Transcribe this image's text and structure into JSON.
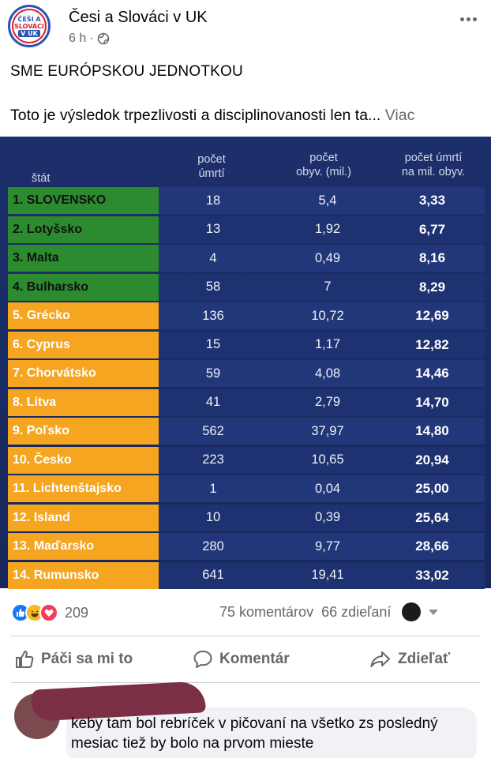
{
  "header": {
    "logo": {
      "line1": "ČEŠI A",
      "line2": "SLOVÁCI",
      "line3": "V UK"
    },
    "group_name": "Česi a Slováci v UK",
    "time": "6 h",
    "separator": "·",
    "icons": {
      "privacy": "globe-icon",
      "menu": "more-icon"
    }
  },
  "post": {
    "title": "SME EURÓPSKOU JEDNOTKOU",
    "text": "Toto je výsledok trpezlivosti a disciplinovanosti  len ta...",
    "more_label": "Viac"
  },
  "table": {
    "headers": {
      "state": "štát",
      "deaths_1": "počet",
      "deaths_2": "úmrtí",
      "pop_1": "počet",
      "pop_2": "obyv. (mil.)",
      "rate_1": "počet úmrtí",
      "rate_2": "na mil. obyv."
    },
    "rows": [
      {
        "state": "1.  SLOVENSKO",
        "deaths": "18",
        "pop": "5,4",
        "rate": "3,33",
        "color": "#2c8b2f"
      },
      {
        "state": "2.  Lotyšsko",
        "deaths": "13",
        "pop": "1,92",
        "rate": "6,77",
        "color": "#2c8b2f"
      },
      {
        "state": "3.  Malta",
        "deaths": "4",
        "pop": "0,49",
        "rate": "8,16",
        "color": "#2c8b2f"
      },
      {
        "state": "4.  Bulharsko",
        "deaths": "58",
        "pop": "7",
        "rate": "8,29",
        "color": "#2c8b2f"
      },
      {
        "state": "5.  Grécko",
        "deaths": "136",
        "pop": "10,72",
        "rate": "12,69",
        "color": "#f5a520"
      },
      {
        "state": "6.  Cyprus",
        "deaths": "15",
        "pop": "1,17",
        "rate": "12,82",
        "color": "#f5a520"
      },
      {
        "state": "7.  Chorvátsko",
        "deaths": "59",
        "pop": "4,08",
        "rate": "14,46",
        "color": "#f5a520"
      },
      {
        "state": "8.  Litva",
        "deaths": "41",
        "pop": "2,79",
        "rate": "14,70",
        "color": "#f5a520"
      },
      {
        "state": "9.  Poľsko",
        "deaths": "562",
        "pop": "37,97",
        "rate": "14,80",
        "color": "#f5a520"
      },
      {
        "state": "10. Česko",
        "deaths": "223",
        "pop": "10,65",
        "rate": "20,94",
        "color": "#f5a520"
      },
      {
        "state": "11. Lichtenštajsko",
        "deaths": "1",
        "pop": "0,04",
        "rate": "25,00",
        "color": "#f5a520"
      },
      {
        "state": "12. Island",
        "deaths": "10",
        "pop": "0,39",
        "rate": "25,64",
        "color": "#f5a520"
      },
      {
        "state": "13. Maďarsko",
        "deaths": "280",
        "pop": "9,77",
        "rate": "28,66",
        "color": "#f5a520"
      },
      {
        "state": "14. Rumunsko",
        "deaths": "641",
        "pop": "19,41",
        "rate": "33,02",
        "color": "#f5a520"
      }
    ]
  },
  "engagement": {
    "reaction_icons": [
      "like-reaction-icon",
      "haha-reaction-icon",
      "love-reaction-icon"
    ],
    "reaction_count": "209",
    "comments": "75 komentárov",
    "shares": "66 zdieľaní"
  },
  "actions": {
    "like": "Páči sa mi to",
    "comment": "Komentár",
    "share": "Zdieľať"
  },
  "comment": {
    "text": "keby tam bol rebríček v pičovaní na všetko zs posledný mesiac tiež by bolo na prvom mieste"
  }
}
